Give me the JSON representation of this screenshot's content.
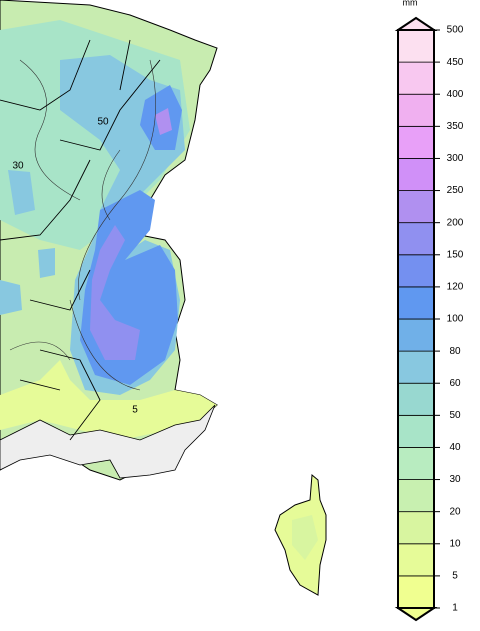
{
  "legend": {
    "unit": "mm",
    "ticks": [
      1,
      5,
      10,
      20,
      30,
      40,
      50,
      60,
      80,
      100,
      120,
      150,
      200,
      250,
      300,
      350,
      400,
      450,
      500
    ],
    "colors": [
      "#f0ff90",
      "#e6fb98",
      "#d8f5a0",
      "#c8f0b0",
      "#b8ecc0",
      "#a8e4c8",
      "#98d8d0",
      "#88c8e0",
      "#70b0e8",
      "#6098f0",
      "#7490f0",
      "#9090f0",
      "#b090f0",
      "#d090f8",
      "#e8a0f8",
      "#f0b0f0",
      "#f8c8f0",
      "#fce0f0"
    ]
  },
  "map_labels": [
    "50",
    "30",
    "5"
  ]
}
